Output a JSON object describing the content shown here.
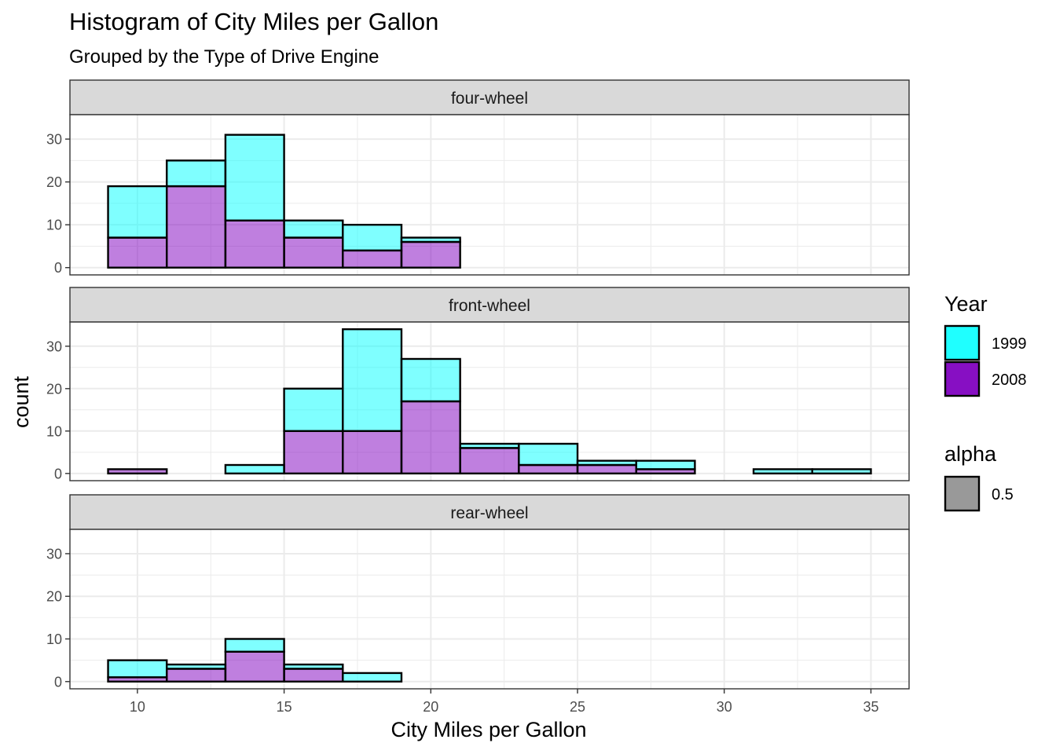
{
  "chart_data": {
    "type": "bar",
    "title": "Histogram of City Miles per Gallon",
    "subtitle": "Grouped by the Type of Drive Engine",
    "xlabel": "City Miles per Gallon",
    "ylabel": "count",
    "xlim": [
      7.7,
      36.3
    ],
    "x_ticks": [
      10,
      15,
      20,
      25,
      30,
      35
    ],
    "ylim": [
      -1.7,
      35.7
    ],
    "y_ticks": [
      0,
      10,
      20,
      30
    ],
    "grid": true,
    "bins": [
      [
        9,
        11
      ],
      [
        11,
        13
      ],
      [
        13,
        15
      ],
      [
        15,
        17
      ],
      [
        17,
        19
      ],
      [
        19,
        21
      ],
      [
        21,
        23
      ],
      [
        23,
        25
      ],
      [
        25,
        27
      ],
      [
        27,
        29
      ],
      [
        29,
        31
      ],
      [
        31,
        33
      ],
      [
        33,
        35
      ]
    ],
    "facets": [
      {
        "label": "four-wheel",
        "series": [
          {
            "name": "1999",
            "values": [
              12,
              6,
              20,
              4,
              6,
              1,
              0,
              0,
              0,
              0,
              0,
              0,
              0
            ]
          },
          {
            "name": "2008",
            "values": [
              7,
              19,
              11,
              7,
              4,
              6,
              0,
              0,
              0,
              0,
              0,
              0,
              0
            ]
          }
        ]
      },
      {
        "label": "front-wheel",
        "series": [
          {
            "name": "1999",
            "values": [
              0,
              0,
              2,
              10,
              24,
              10,
              1,
              5,
              1,
              2,
              0,
              1,
              1
            ]
          },
          {
            "name": "2008",
            "values": [
              1,
              0,
              0,
              10,
              10,
              17,
              6,
              2,
              2,
              1,
              0,
              0,
              0
            ]
          }
        ]
      },
      {
        "label": "rear-wheel",
        "series": [
          {
            "name": "1999",
            "values": [
              4,
              1,
              3,
              1,
              2,
              0,
              0,
              0,
              0,
              0,
              0,
              0,
              0
            ]
          },
          {
            "name": "2008",
            "values": [
              1,
              3,
              7,
              3,
              0,
              0,
              0,
              0,
              0,
              0,
              0,
              0,
              0
            ]
          }
        ]
      }
    ],
    "legend": {
      "placement": "right",
      "fill": {
        "title": "Year",
        "items": [
          {
            "label": "1999",
            "color": "#00FFFF"
          },
          {
            "label": "2008",
            "color": "#7F00BF"
          }
        ]
      },
      "alpha": {
        "title": "alpha",
        "items": [
          {
            "label": "0.5",
            "color": "#333333"
          }
        ]
      }
    },
    "colors": {
      "1999": "#00FFFF",
      "2008": "#7F00BF"
    },
    "fill_alpha": 0.5
  }
}
